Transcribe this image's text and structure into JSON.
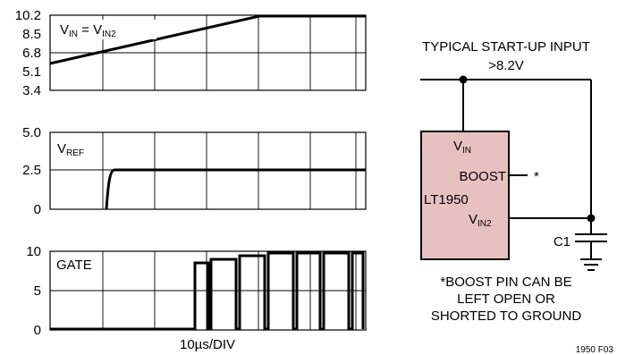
{
  "plot1": {
    "ticks": [
      "10.2",
      "8.5",
      "6.8",
      "5.1",
      "3.4"
    ],
    "label": {
      "main": "V",
      "sub1": "IN",
      "eq": " = V",
      "sub2": "IN2"
    }
  },
  "plot2": {
    "ticks": [
      "5.0",
      "2.5",
      "0"
    ],
    "label": {
      "main": "V",
      "sub": "REF"
    }
  },
  "plot3": {
    "ticks": [
      "10",
      "5",
      "0"
    ],
    "label": "GATE"
  },
  "xaxis": {
    "label": "10µs/DIV"
  },
  "schematic": {
    "input_label_line1": "TYPICAL START-UP INPUT",
    "input_label_line2": ">8.2V",
    "chip": {
      "vin": {
        "main": "V",
        "sub": "IN"
      },
      "boost": "BOOST",
      "name": "LT1950",
      "vin2": {
        "main": "V",
        "sub": "IN2"
      }
    },
    "boost_note_mark": "*",
    "capacitor": "C1",
    "note_line1": "*BOOST PIN CAN BE",
    "note_line2": "LEFT OPEN OR",
    "note_line3": "SHORTED TO GROUND"
  },
  "figure_id": "1950 F03",
  "colors": {
    "chip_fill": "#e7c1c0",
    "ink": "#000000"
  }
}
